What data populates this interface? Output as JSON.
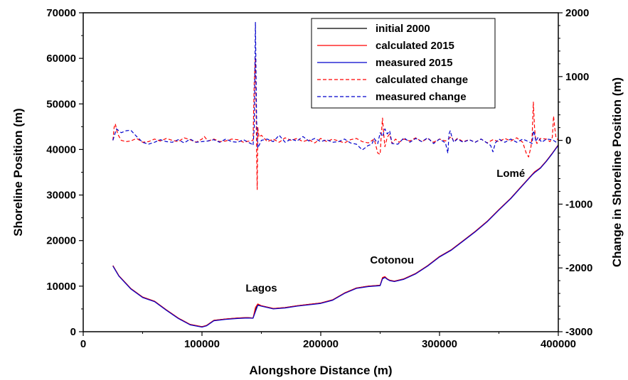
{
  "chart_data": {
    "type": "line",
    "xlabel": "Alongshore Distance (m)",
    "ylabel": "Shoreline Position (m)",
    "y2label": "Change in Shoreline Position (m)",
    "xlim": [
      0,
      400000
    ],
    "ylim": [
      0,
      70000
    ],
    "y2lim": [
      -3000,
      2000
    ],
    "x_ticks": [
      0,
      100000,
      200000,
      300000,
      400000
    ],
    "y_ticks": [
      0,
      10000,
      20000,
      30000,
      40000,
      50000,
      60000,
      70000
    ],
    "y2_ticks": [
      -3000,
      -2000,
      -1000,
      0,
      1000,
      2000
    ],
    "x_tick_labels": [
      "0",
      "100000",
      "200000",
      "300000",
      "400000"
    ],
    "y_tick_labels": [
      "0",
      "10000",
      "20000",
      "30000",
      "40000",
      "50000",
      "60000",
      "70000"
    ],
    "y2_tick_labels": [
      "-3000",
      "-2000",
      "-1000",
      "0",
      "1000",
      "2000"
    ],
    "grid": false,
    "legend_position": "top-right",
    "annotations": [
      {
        "text": "Lagos",
        "x": 150000,
        "y": 8800
      },
      {
        "text": "Cotonou",
        "x": 260000,
        "y": 15000
      },
      {
        "text": "Lomé",
        "x": 360000,
        "y": 34000
      }
    ],
    "series": [
      {
        "name": "initial 2000",
        "axis": "left",
        "color": "#000000",
        "dash": "solid",
        "x": [
          25000,
          30000,
          40000,
          50000,
          60000,
          70000,
          80000,
          90000,
          100000,
          104000,
          110000,
          120000,
          130000,
          138000,
          143000,
          145000,
          147000,
          150000,
          160000,
          170000,
          180000,
          190000,
          200000,
          210000,
          220000,
          230000,
          240000,
          250000,
          252000,
          254000,
          256000,
          258000,
          262000,
          270000,
          280000,
          290000,
          300000,
          310000,
          320000,
          330000,
          340000,
          350000,
          360000,
          370000,
          378000,
          380000,
          385000,
          390000,
          395000,
          400000
        ],
        "y": [
          14500,
          12300,
          9500,
          7600,
          6700,
          4800,
          3000,
          1600,
          1100,
          1400,
          2500,
          2800,
          3000,
          3100,
          3000,
          4800,
          5900,
          5700,
          5100,
          5300,
          5700,
          6000,
          6300,
          7000,
          8500,
          9600,
          10000,
          10200,
          11800,
          12000,
          11600,
          11300,
          11100,
          11600,
          12800,
          14500,
          16500,
          18000,
          20000,
          22000,
          24200,
          26800,
          29300,
          32200,
          34500,
          35000,
          36000,
          37500,
          39200,
          41000
        ]
      },
      {
        "name": "calculated 2015",
        "axis": "left",
        "color": "#ff0000",
        "dash": "solid",
        "x": [
          25000,
          30000,
          40000,
          50000,
          60000,
          70000,
          80000,
          90000,
          100000,
          104000,
          110000,
          120000,
          130000,
          138000,
          143000,
          145000,
          147000,
          150000,
          160000,
          170000,
          180000,
          190000,
          200000,
          210000,
          220000,
          230000,
          240000,
          250000,
          252000,
          254000,
          256000,
          258000,
          262000,
          270000,
          280000,
          290000,
          300000,
          310000,
          320000,
          330000,
          340000,
          350000,
          360000,
          370000,
          378000,
          380000,
          385000,
          390000,
          395000,
          400000
        ],
        "y": [
          14500,
          12300,
          9500,
          7600,
          6700,
          4800,
          3000,
          1600,
          1100,
          1400,
          2500,
          2800,
          3000,
          3100,
          3000,
          5300,
          6100,
          5700,
          5100,
          5300,
          5700,
          6000,
          6300,
          7000,
          8500,
          9600,
          10000,
          10200,
          11900,
          12100,
          11600,
          11300,
          11100,
          11600,
          12800,
          14500,
          16500,
          18000,
          20000,
          22000,
          24200,
          26800,
          29300,
          32200,
          34500,
          35100,
          36000,
          37500,
          39200,
          41000
        ]
      },
      {
        "name": "measured 2015",
        "axis": "left",
        "color": "#0000cc",
        "dash": "solid",
        "x": [
          25000,
          30000,
          40000,
          50000,
          60000,
          70000,
          80000,
          90000,
          100000,
          104000,
          110000,
          120000,
          130000,
          138000,
          143000,
          145000,
          147000,
          150000,
          160000,
          170000,
          180000,
          190000,
          200000,
          210000,
          220000,
          230000,
          240000,
          250000,
          252000,
          254000,
          256000,
          258000,
          262000,
          270000,
          280000,
          290000,
          300000,
          310000,
          320000,
          330000,
          340000,
          350000,
          360000,
          370000,
          378000,
          380000,
          385000,
          390000,
          395000,
          400000
        ],
        "y": [
          14400,
          12200,
          9400,
          7500,
          6600,
          4700,
          2900,
          1500,
          1000,
          1300,
          2400,
          2700,
          2900,
          3000,
          2950,
          4400,
          5800,
          5600,
          5000,
          5200,
          5600,
          5900,
          6200,
          6900,
          8400,
          9500,
          9900,
          10100,
          11600,
          11900,
          11500,
          11200,
          11000,
          11500,
          12700,
          14400,
          16400,
          17900,
          19900,
          21900,
          24100,
          26700,
          29200,
          32100,
          34400,
          34900,
          35900,
          37400,
          39100,
          40900
        ]
      },
      {
        "name": "calculated change",
        "axis": "right",
        "color": "#ff0000",
        "dash": "dashed",
        "x": [
          25000,
          26000,
          27000,
          29000,
          32000,
          36000,
          40000,
          45000,
          50000,
          55000,
          60000,
          65000,
          70000,
          75000,
          80000,
          85000,
          90000,
          95000,
          100000,
          102000,
          105000,
          110000,
          115000,
          120000,
          125000,
          130000,
          135000,
          140000,
          143000,
          144000,
          145000,
          146000,
          146500,
          147000,
          148000,
          150000,
          155000,
          160000,
          165000,
          170000,
          175000,
          180000,
          185000,
          190000,
          195000,
          200000,
          205000,
          210000,
          215000,
          220000,
          225000,
          230000,
          235000,
          240000,
          245000,
          248000,
          250000,
          251000,
          252000,
          253000,
          254000,
          256000,
          258000,
          260000,
          263000,
          266000,
          270000,
          275000,
          280000,
          285000,
          290000,
          295000,
          300000,
          305000,
          308000,
          310000,
          312000,
          315000,
          320000,
          325000,
          330000,
          335000,
          340000,
          345000,
          350000,
          355000,
          360000,
          365000,
          370000,
          373000,
          375000,
          377000,
          378000,
          379000,
          380000,
          381000,
          382000,
          385000,
          390000,
          393000,
          395000,
          396000,
          397000,
          398000,
          400000
        ],
        "y": [
          0,
          200,
          260,
          100,
          0,
          -20,
          -10,
          30,
          -30,
          -20,
          20,
          -10,
          30,
          0,
          -20,
          40,
          10,
          -30,
          20,
          60,
          -10,
          20,
          -20,
          -10,
          20,
          10,
          -30,
          -10,
          0,
          900,
          1300,
          -200,
          -770,
          200,
          50,
          80,
          -20,
          20,
          -30,
          40,
          0,
          30,
          -20,
          10,
          -40,
          30,
          -20,
          20,
          -10,
          -40,
          10,
          30,
          -20,
          -40,
          20,
          -200,
          -220,
          100,
          350,
          100,
          -100,
          50,
          100,
          -50,
          20,
          -30,
          20,
          -10,
          40,
          -20,
          30,
          -30,
          20,
          -10,
          30,
          60,
          -20,
          30,
          -20,
          10,
          -30,
          20,
          -40,
          10,
          -20,
          30,
          -10,
          40,
          -30,
          -200,
          -260,
          -100,
          80,
          600,
          200,
          0,
          -50,
          30,
          20,
          -20,
          50,
          380,
          200,
          50,
          0
        ]
      },
      {
        "name": "measured change",
        "axis": "right",
        "color": "#0000cc",
        "dash": "dashed",
        "x": [
          25000,
          28000,
          32000,
          36000,
          40000,
          45000,
          50000,
          55000,
          60000,
          65000,
          70000,
          75000,
          80000,
          85000,
          90000,
          95000,
          100000,
          105000,
          110000,
          115000,
          120000,
          125000,
          130000,
          135000,
          140000,
          142000,
          143000,
          144000,
          145000,
          146000,
          147000,
          150000,
          155000,
          160000,
          165000,
          170000,
          175000,
          180000,
          185000,
          190000,
          195000,
          200000,
          205000,
          210000,
          215000,
          220000,
          225000,
          230000,
          235000,
          240000,
          243000,
          245000,
          248000,
          250000,
          252000,
          254000,
          256000,
          258000,
          260000,
          265000,
          270000,
          275000,
          280000,
          285000,
          290000,
          295000,
          300000,
          305000,
          307000,
          308000,
          309000,
          310000,
          312000,
          315000,
          320000,
          325000,
          330000,
          335000,
          340000,
          343000,
          345000,
          347000,
          350000,
          355000,
          360000,
          365000,
          370000,
          375000,
          378000,
          379000,
          380000,
          381000,
          383000,
          386000,
          390000,
          395000,
          400000
        ],
        "y": [
          0,
          180,
          120,
          150,
          160,
          60,
          -30,
          -60,
          -30,
          10,
          -20,
          -30,
          10,
          -40,
          20,
          -30,
          -20,
          -10,
          10,
          -30,
          20,
          -20,
          -30,
          10,
          -40,
          -60,
          -80,
          200,
          1850,
          300,
          -120,
          0,
          20,
          -20,
          80,
          -30,
          20,
          -10,
          60,
          -10,
          30,
          -20,
          10,
          -30,
          -20,
          20,
          -40,
          -60,
          -150,
          -80,
          -60,
          30,
          -50,
          120,
          60,
          180,
          100,
          150,
          -50,
          -60,
          40,
          -30,
          30,
          -20,
          40,
          -50,
          20,
          -40,
          -200,
          100,
          150,
          80,
          -30,
          20,
          -30,
          10,
          -30,
          20,
          -40,
          -80,
          -180,
          -40,
          20,
          -30,
          20,
          -30,
          20,
          -20,
          -50,
          150,
          100,
          -20,
          50,
          -30,
          20,
          10,
          -50
        ]
      }
    ]
  }
}
